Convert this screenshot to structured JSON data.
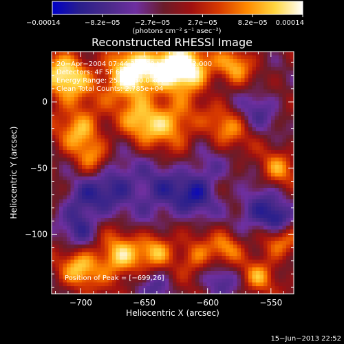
{
  "chart_data": {
    "type": "heatmap",
    "title": "Reconstructed RHESSI Image",
    "xlabel": "Heliocentric X (arcsec)",
    "ylabel": "Heliocentric Y (arcsec)",
    "xlim": [
      -723,
      -532
    ],
    "ylim": [
      -145,
      38
    ],
    "xticks": [
      -700,
      -650,
      -600,
      -550
    ],
    "xtick_labels": [
      "−700",
      "−650",
      "−600",
      "−550"
    ],
    "yticks": [
      0,
      -50,
      -100
    ],
    "ytick_labels": [
      "0",
      "−50",
      "−100"
    ],
    "colorbar": {
      "range": [
        -0.00014,
        0.00014
      ],
      "tick_labels": [
        "−0.00014",
        "−8.2e−05",
        "−2.7e−05",
        "2.7e−05",
        "8.2e−05",
        "0.00014"
      ],
      "unit_label": "(photons cm⁻² s⁻¹ asec⁻²)",
      "colormap": [
        "#0000c8",
        "#2a1f8c",
        "#4a2a8a",
        "#6e2fa0",
        "#6a1c2a",
        "#a01010",
        "#d83a00",
        "#ff8a00",
        "#ffd640",
        "#ffffff"
      ]
    },
    "annotations": [
      "20−Apr−2004 07:44:32.000 to 07:47:32.000",
      "Detectors: 4F 5F 6F 7F 8F, Att 0",
      "Energy Range: 25.0 − 50.0 keV",
      "Clean   Total Counts: 2.785e+04"
    ],
    "peak_label": "Position of Peak = [−699,26]",
    "peak": [
      -699,
      26
    ],
    "grid": false,
    "hot_sources": [
      [
        -712,
        18,
        14,
        1.0
      ],
      [
        -662,
        20,
        13,
        1.3
      ],
      [
        -630,
        28,
        12,
        1.2
      ],
      [
        -612,
        24,
        11,
        1.0
      ],
      [
        -578,
        28,
        10,
        0.7
      ],
      [
        -700,
        -20,
        12,
        0.8
      ],
      [
        -690,
        -44,
        10,
        0.6
      ],
      [
        -650,
        -14,
        13,
        0.8
      ],
      [
        -625,
        -16,
        12,
        0.7
      ],
      [
        -585,
        -20,
        12,
        0.6
      ],
      [
        -545,
        -52,
        10,
        0.6
      ],
      [
        -700,
        -125,
        11,
        0.8
      ],
      [
        -670,
        -118,
        12,
        0.9
      ],
      [
        -640,
        -112,
        10,
        0.8
      ],
      [
        -610,
        -118,
        10,
        0.6
      ],
      [
        -585,
        -110,
        9,
        0.6
      ],
      [
        -545,
        -105,
        10,
        0.7
      ],
      [
        -560,
        -132,
        9,
        0.6
      ]
    ],
    "cold_sources": [
      [
        -675,
        -60,
        14,
        -0.7
      ],
      [
        -640,
        -70,
        15,
        -0.6
      ],
      [
        -610,
        -72,
        13,
        -0.6
      ],
      [
        -560,
        -80,
        12,
        -0.7
      ],
      [
        -545,
        -90,
        8,
        -0.9
      ],
      [
        -700,
        -78,
        12,
        -0.6
      ],
      [
        -600,
        -50,
        12,
        -0.4
      ],
      [
        -560,
        -5,
        12,
        -0.5
      ],
      [
        -590,
        -135,
        10,
        -0.5
      ],
      [
        -640,
        -138,
        10,
        -0.5
      ],
      [
        -700,
        -98,
        10,
        -0.5
      ]
    ]
  },
  "footer_date": "15−Jun−2013 22:52"
}
